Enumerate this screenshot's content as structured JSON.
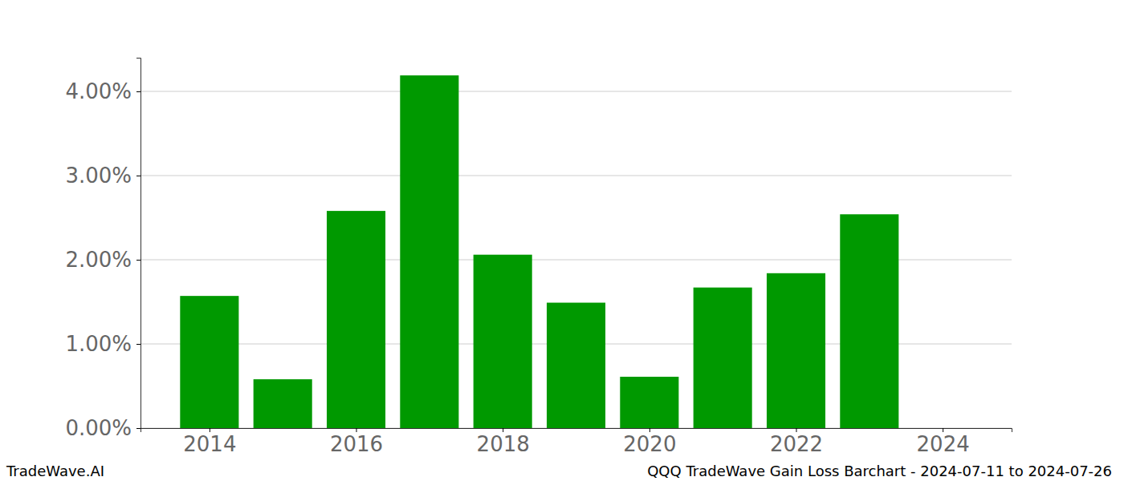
{
  "chart_data": {
    "type": "bar",
    "title": "QQQ TradeWave Gain Loss Barchart - 2024-07-11 to 2024-07-26",
    "annotations": [
      "TradeWave.AI"
    ],
    "x": [
      2014,
      2015,
      2016,
      2017,
      2018,
      2019,
      2020,
      2021,
      2022,
      2023,
      2024
    ],
    "values": [
      1.57,
      0.58,
      2.58,
      4.19,
      2.06,
      1.49,
      0.61,
      1.67,
      1.84,
      2.54,
      0
    ],
    "color": "#009900",
    "xlim": [
      2013.06,
      2024.94
    ],
    "xticks": [
      2014,
      2016,
      2018,
      2020,
      2022,
      2024
    ],
    "ylim": [
      0,
      4.4
    ],
    "yticks": [
      {
        "value": 0,
        "label": "0.00%"
      },
      {
        "value": 1,
        "label": "1.00%"
      },
      {
        "value": 2,
        "label": "2.00%"
      },
      {
        "value": 3,
        "label": "3.00%"
      },
      {
        "value": 4,
        "label": "4.00%"
      }
    ],
    "grid": true
  }
}
